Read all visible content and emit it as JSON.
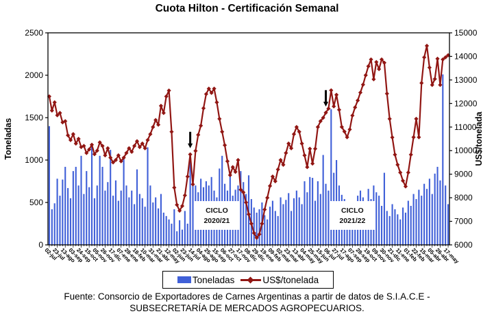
{
  "title": "Cuota Hilton - Certificación Semanal",
  "legend": {
    "items": [
      {
        "label": "Toneladas",
        "marker": "bar-swatch",
        "color": "#4060d8"
      },
      {
        "label": "US$/tonelada",
        "marker": "line-diamond",
        "color": "#911613"
      }
    ]
  },
  "footer": {
    "line1": "Fuente: Consorcio de Exportadores de Carnes Argentinas a partir de datos de S.I.A.C.E -",
    "line2": "SUBSECRETARÍA DE MERCADOS AGROPECUARIOS."
  },
  "chart_data": {
    "type": "bar",
    "combo": "bar+line",
    "grid": false,
    "legend_position": "bottom",
    "points_per_label": 3,
    "x_tick_labels": [
      "02-jul",
      "23-jul",
      "13-ago",
      "03-sep",
      "24-sep",
      "15-oct",
      "05-nov",
      "26-nov",
      "17-dic",
      "07-ene",
      "28-ene",
      "18-feb",
      "10-mar",
      "31-mar",
      "21-abr",
      "12-may",
      "02-jun",
      "23-jun",
      "14-jul",
      "04-ago",
      "25-ago",
      "15-sep",
      "06-oct",
      "27-oct",
      "17-nov",
      "08-dic",
      "29-dic",
      "19-ene",
      "09-feb",
      "02-mar",
      "23-mar",
      "13-abr",
      "04-may",
      "25-may",
      "15-jun",
      "06-jul",
      "27-jul",
      "17-ago",
      "07-sep",
      "28-sep",
      "19-oct",
      "09-nov",
      "30-nov",
      "21-dic",
      "11-ene",
      "01-feb",
      "22-feb",
      "15-mar",
      "05-abr",
      "26-abr",
      "17-may"
    ],
    "left_axis": {
      "title": "Toneladas",
      "min": 0,
      "max": 2500,
      "step": 500,
      "ticks": [
        0,
        500,
        1000,
        1500,
        2000,
        2500
      ]
    },
    "right_axis": {
      "title": "US$/tonelada",
      "min": 6000,
      "max": 15000,
      "step": 1000,
      "ticks": [
        6000,
        7000,
        8000,
        9000,
        10000,
        11000,
        12000,
        13000,
        14000,
        15000
      ]
    },
    "series": [
      {
        "name": "Toneladas",
        "type": "bar",
        "axis": "left",
        "color": "#4060d8",
        "values": [
          1400,
          420,
          490,
          780,
          580,
          770,
          920,
          670,
          550,
          870,
          920,
          700,
          1050,
          600,
          870,
          680,
          1180,
          550,
          700,
          1050,
          920,
          640,
          740,
          1120,
          580,
          760,
          520,
          640,
          1020,
          700,
          560,
          640,
          480,
          890,
          600,
          550,
          450,
          1150,
          700,
          500,
          560,
          430,
          600,
          380,
          340,
          300,
          250,
          420,
          160,
          290,
          180,
          400,
          250,
          1000,
          730,
          700,
          620,
          780,
          680,
          750,
          700,
          800,
          640,
          560,
          900,
          1050,
          720,
          640,
          840,
          580,
          650,
          700,
          870,
          740,
          600,
          820,
          540,
          440,
          380,
          420,
          500,
          350,
          300,
          450,
          520,
          400,
          340,
          560,
          480,
          530,
          610,
          400,
          550,
          640,
          560,
          480,
          750,
          620,
          800,
          790,
          520,
          750,
          600,
          1060,
          720,
          640,
          1600,
          850,
          1000,
          700,
          590,
          540,
          450,
          380,
          420,
          500,
          580,
          640,
          560,
          480,
          660,
          540,
          700,
          620,
          580,
          460,
          850,
          400,
          340,
          480,
          420,
          360,
          300,
          440,
          380,
          520,
          460,
          600,
          540,
          650,
          580,
          720,
          660,
          780,
          600,
          840,
          920,
          760,
          2010,
          700,
          480
        ]
      },
      {
        "name": "US$/tonelada",
        "type": "line",
        "axis": "right",
        "color": "#911613",
        "marker": "diamond",
        "values": [
          12300,
          11700,
          12050,
          11500,
          11600,
          11200,
          11250,
          10650,
          10450,
          10700,
          10300,
          10500,
          10150,
          10200,
          9900,
          10050,
          10250,
          9850,
          10000,
          10350,
          10200,
          9800,
          10100,
          9700,
          9500,
          9600,
          9800,
          9550,
          9700,
          9900,
          10100,
          9950,
          10200,
          10400,
          10150,
          10300,
          10100,
          10450,
          10700,
          11000,
          11300,
          11100,
          11900,
          11600,
          12300,
          12550,
          10800,
          8430,
          7700,
          7450,
          7650,
          8100,
          8900,
          9840,
          8570,
          9990,
          10670,
          11060,
          11800,
          12400,
          12630,
          12450,
          12630,
          12050,
          11350,
          10800,
          10230,
          9550,
          8960,
          9300,
          9100,
          9600,
          8340,
          8230,
          7800,
          7300,
          6900,
          6500,
          6300,
          6450,
          6900,
          7500,
          8000,
          8500,
          8900,
          8700,
          9200,
          9600,
          9400,
          9900,
          10300,
          10100,
          10700,
          11000,
          10800,
          10300,
          9800,
          9300,
          10080,
          9450,
          10080,
          11000,
          11250,
          11395,
          11610,
          11785,
          12560,
          11880,
          12370,
          11735,
          11005,
          10810,
          10570,
          10900,
          11490,
          11835,
          12130,
          12465,
          12800,
          13200,
          13580,
          13870,
          13030,
          13760,
          13460,
          13870,
          13730,
          12420,
          11350,
          10560,
          9830,
          9400,
          9070,
          8720,
          8480,
          9070,
          9830,
          10570,
          11350,
          10570,
          12870,
          13960,
          14450,
          13525,
          12790,
          13040,
          13900,
          12790,
          13870,
          13960,
          14050
        ]
      }
    ],
    "annotations": {
      "boxes": [
        {
          "lines": [
            "CICLO",
            "2020/21"
          ],
          "center_index": 63
        },
        {
          "lines": [
            "CICLO",
            "2021/22"
          ],
          "center_index": 114
        }
      ],
      "arrows": [
        {
          "index": 53
        },
        {
          "index": 104
        }
      ]
    }
  }
}
